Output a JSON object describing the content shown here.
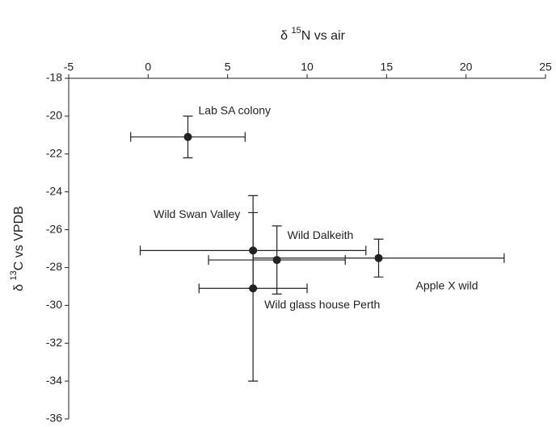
{
  "chart_data": {
    "type": "scatter",
    "xlabel": {
      "prefix": "δ ",
      "sup": "15",
      "rest": "N vs air"
    },
    "ylabel": {
      "prefix": "δ ",
      "sup": "13",
      "rest": "C vs VPDB"
    },
    "xlim": [
      -5,
      25
    ],
    "xticks": [
      -5,
      0,
      5,
      10,
      15,
      20,
      25
    ],
    "ylim": [
      -36,
      -18
    ],
    "yticks": [
      -18,
      -20,
      -22,
      -24,
      -26,
      -28,
      -30,
      -32,
      -34,
      -36
    ],
    "color": "#222222",
    "series": [
      {
        "labels": [
          "Lab SA colony",
          "Wild Swan Valley",
          "Wild Dalkeith",
          "Apple X wild",
          "Wild glass house Perth"
        ],
        "x": [
          2.5,
          6.6,
          8.1,
          14.5,
          6.6
        ],
        "values": [
          -21.1,
          -27.1,
          -27.6,
          -27.5,
          -29.1
        ],
        "xerr": [
          3.6,
          7.1,
          4.3,
          7.9,
          3.4
        ],
        "yerr": [
          1.1,
          2.0,
          1.8,
          1.0,
          4.9
        ]
      }
    ]
  }
}
